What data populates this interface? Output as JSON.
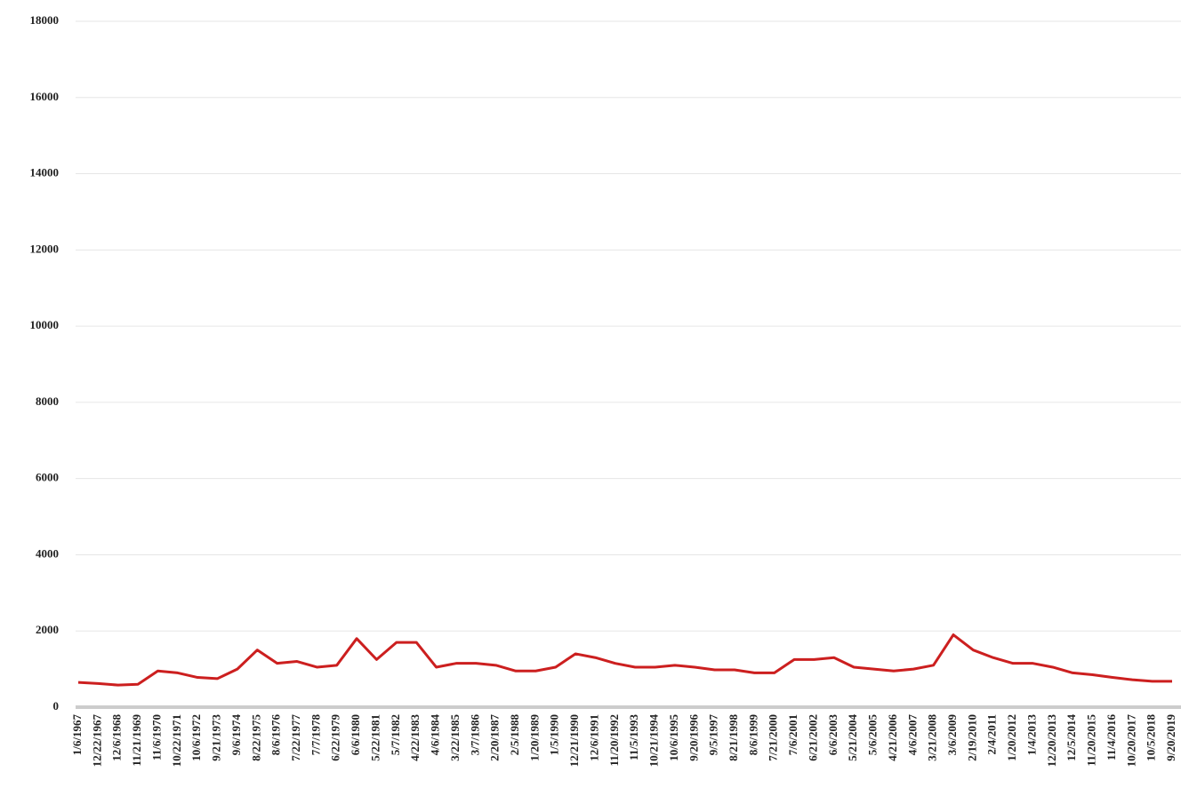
{
  "chart_data": {
    "type": "line",
    "categories": [
      "1/6/1967",
      "12/22/1967",
      "12/6/1968",
      "11/21/1969",
      "11/6/1970",
      "10/22/1971",
      "10/6/1972",
      "9/21/1973",
      "9/6/1974",
      "8/22/1975",
      "8/6/1976",
      "7/22/1977",
      "7/7/1978",
      "6/22/1979",
      "6/6/1980",
      "5/22/1981",
      "5/7/1982",
      "4/22/1983",
      "4/6/1984",
      "3/22/1985",
      "3/7/1986",
      "2/20/1987",
      "2/5/1988",
      "1/20/1989",
      "1/5/1990",
      "12/21/1990",
      "12/6/1991",
      "11/20/1992",
      "11/5/1993",
      "10/21/1994",
      "10/6/1995",
      "9/20/1996",
      "9/5/1997",
      "8/21/1998",
      "8/6/1999",
      "7/21/2000",
      "7/6/2001",
      "6/21/2002",
      "6/6/2003",
      "5/21/2004",
      "5/6/2005",
      "4/21/2006",
      "4/6/2007",
      "3/21/2008",
      "3/6/2009",
      "2/19/2010",
      "2/4/2011",
      "1/20/2012",
      "1/4/2013",
      "12/20/2013",
      "12/5/2014",
      "11/20/2015",
      "11/4/2016",
      "10/20/2017",
      "10/5/2018",
      "9/20/2019"
    ],
    "series": [
      {
        "color": "#cc1f1f",
        "values": [
          650,
          620,
          580,
          600,
          950,
          900,
          780,
          750,
          1000,
          1500,
          1150,
          1200,
          1050,
          1100,
          1800,
          1250,
          1700,
          1700,
          1050,
          1150,
          1150,
          1100,
          950,
          950,
          1050,
          1400,
          1300,
          1150,
          1050,
          1050,
          1100,
          1050,
          980,
          980,
          900,
          900,
          1250,
          1250,
          1300,
          1050,
          1000,
          950,
          1000,
          1100,
          1900,
          1500,
          1300,
          1150,
          1150,
          1050,
          900,
          850,
          780,
          720,
          680,
          680
        ]
      }
    ],
    "ylim": [
      0,
      18000
    ],
    "yticks": [
      0,
      2000,
      4000,
      6000,
      8000,
      10000,
      12000,
      14000,
      16000,
      18000
    ],
    "grid": true
  }
}
